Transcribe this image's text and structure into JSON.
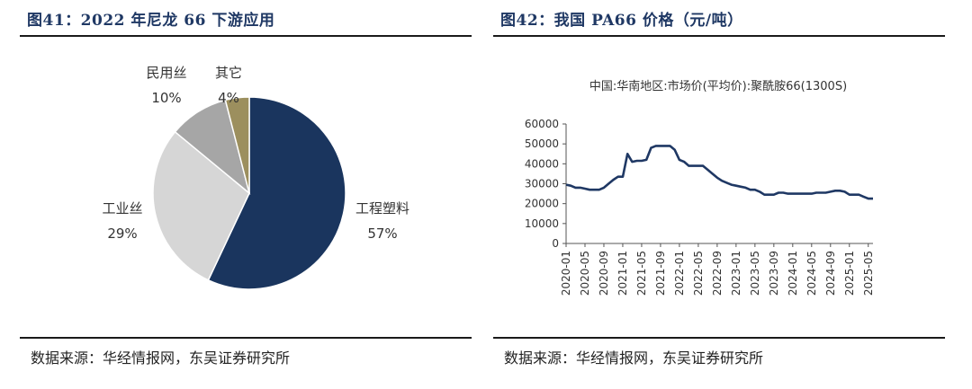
{
  "left_panel": {
    "title": "图41：2022 年尼龙 66 下游应用",
    "source": "数据来源：华经情报网，东吴证券研究所"
  },
  "right_panel": {
    "title": "图42：我国 PA66 价格（元/吨）",
    "source": "数据来源：华经情报网，东吴证券研究所"
  },
  "chart_data": [
    {
      "type": "pie",
      "title": "",
      "slices": [
        {
          "label": "工程塑料",
          "value": 57,
          "display": "57%",
          "color": "#1a355e"
        },
        {
          "label": "工业丝",
          "value": 29,
          "display": "29%",
          "color": "#d6d6d6"
        },
        {
          "label": "民用丝",
          "value": 10,
          "display": "10%",
          "color": "#a6a6a6"
        },
        {
          "label": "其它",
          "value": 4,
          "display": "4%",
          "color": "#9c8f5e"
        }
      ]
    },
    {
      "type": "line",
      "title": "中国:华南地区:市场价(平均价):聚酰胺66(1300S)",
      "xlabel": "",
      "ylabel": "",
      "ylim": [
        0,
        60000
      ],
      "yticks": [
        "0",
        "10000",
        "20000",
        "30000",
        "40000",
        "50000",
        "60000"
      ],
      "xticks": [
        "2020-01",
        "2020-05",
        "2020-09",
        "2021-01",
        "2021-05",
        "2021-09",
        "2022-01",
        "2022-05",
        "2022-09",
        "2023-01",
        "2023-05",
        "2023-09",
        "2024-01",
        "2024-05",
        "2024-09",
        "2025-01",
        "2025-05"
      ],
      "line_color": "#1f3864",
      "series": [
        {
          "x": [
            "2020-01",
            "2020-02",
            "2020-03",
            "2020-04",
            "2020-05",
            "2020-06",
            "2020-07",
            "2020-08",
            "2020-09",
            "2020-10",
            "2020-11",
            "2020-12",
            "2021-01",
            "2021-02",
            "2021-03",
            "2021-04",
            "2021-05",
            "2021-06",
            "2021-07",
            "2021-08",
            "2021-09",
            "2021-10",
            "2021-11",
            "2021-12",
            "2022-01",
            "2022-02",
            "2022-03",
            "2022-04",
            "2022-05",
            "2022-06",
            "2022-07",
            "2022-08",
            "2022-09",
            "2022-10",
            "2022-11",
            "2022-12",
            "2023-01",
            "2023-02",
            "2023-03",
            "2023-04",
            "2023-05",
            "2023-06",
            "2023-07",
            "2023-08",
            "2023-09",
            "2023-10",
            "2023-11",
            "2023-12",
            "2024-01",
            "2024-02",
            "2024-03",
            "2024-04",
            "2024-05",
            "2024-06",
            "2024-07",
            "2024-08",
            "2024-09",
            "2024-10",
            "2024-11",
            "2024-12",
            "2025-01",
            "2025-02",
            "2025-03",
            "2025-04",
            "2025-05",
            "2025-06"
          ],
          "values": [
            29500,
            29000,
            28000,
            28000,
            27500,
            27000,
            27000,
            27000,
            28000,
            30000,
            32000,
            33500,
            33500,
            45000,
            41000,
            41500,
            41500,
            42000,
            48000,
            49000,
            49000,
            49000,
            49000,
            47000,
            42000,
            41000,
            39000,
            39000,
            39000,
            39000,
            37000,
            35000,
            33000,
            31500,
            30500,
            29500,
            29000,
            28500,
            28000,
            27000,
            27000,
            26000,
            24500,
            24500,
            24500,
            25500,
            25500,
            25000,
            25000,
            25000,
            25000,
            25000,
            25000,
            25500,
            25500,
            25500,
            26000,
            26500,
            26500,
            26000,
            24500,
            24500,
            24500,
            23500,
            22500,
            22500
          ]
        }
      ]
    }
  ]
}
